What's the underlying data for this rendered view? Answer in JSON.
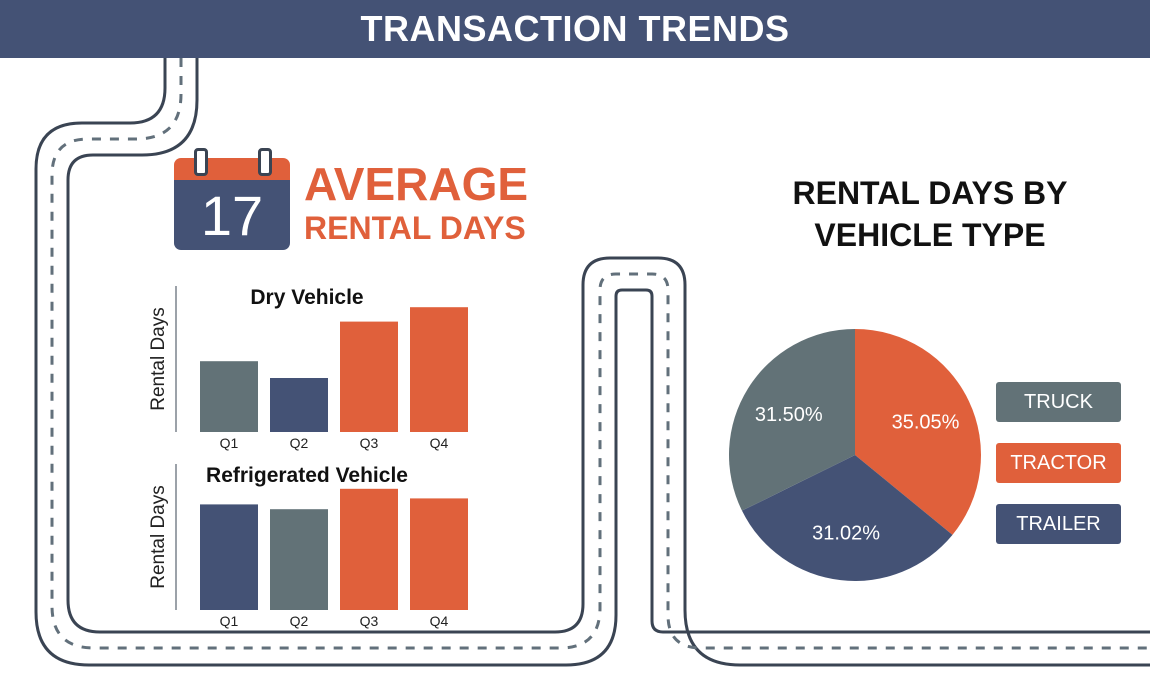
{
  "banner": {
    "title": "TRANSACTION TRENDS"
  },
  "average": {
    "calendar_day": "17",
    "title": "AVERAGE",
    "subtitle": "RENTAL DAYS"
  },
  "colors": {
    "navy": "#445275",
    "orange": "#e0603b",
    "slate": "#627277",
    "road": "#3a4453"
  },
  "chart_data": [
    {
      "type": "bar",
      "title": "Dry Vehicle",
      "ylabel": "Rental Days",
      "categories": [
        "Q1",
        "Q2",
        "Q3",
        "Q4"
      ],
      "values": [
        5.9,
        4.5,
        9.2,
        10.4
      ],
      "bar_colors": [
        "#627277",
        "#445275",
        "#e0603b",
        "#e0603b"
      ],
      "ylim": [
        0,
        11
      ]
    },
    {
      "type": "bar",
      "title": "Refrigerated Vehicle",
      "ylabel": "Rental Days",
      "categories": [
        "Q1",
        "Q2",
        "Q3",
        "Q4"
      ],
      "values": [
        8.8,
        8.4,
        10.1,
        9.3
      ],
      "bar_colors": [
        "#445275",
        "#627277",
        "#e0603b",
        "#e0603b"
      ],
      "ylim": [
        0,
        11
      ]
    },
    {
      "type": "pie",
      "title": "RENTAL DAYS BY VEHICLE TYPE",
      "labels": [
        "TRACTOR",
        "TRAILER",
        "TRUCK"
      ],
      "values": [
        35.05,
        31.02,
        31.5
      ],
      "value_labels": [
        "35.05%",
        "31.02%",
        "31.50%"
      ],
      "colors": [
        "#e0603b",
        "#445275",
        "#627277"
      ],
      "legend": [
        {
          "label": "TRUCK",
          "color": "#627277"
        },
        {
          "label": "TRACTOR",
          "color": "#e0603b"
        },
        {
          "label": "TRAILER",
          "color": "#445275"
        }
      ],
      "legend_position": "right"
    }
  ]
}
